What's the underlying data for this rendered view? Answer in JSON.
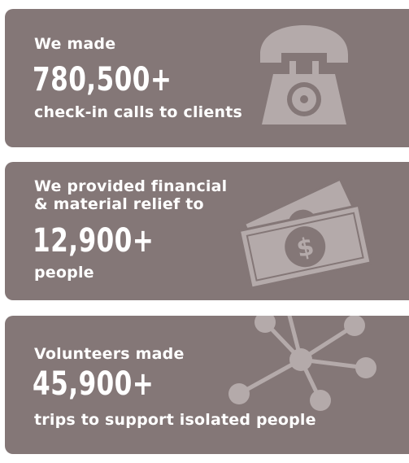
{
  "stats": [
    {
      "lead": "We made",
      "number": "780,500+",
      "tail": "check-in calls to clients",
      "icon": "phone-icon"
    },
    {
      "lead": "We provided financial & material relief to",
      "number": "12,900+",
      "tail": "people",
      "icon": "money-icon"
    },
    {
      "lead": "Volunteers made",
      "number": "45,900+",
      "tail": "trips to support isolated people",
      "icon": "network-icon"
    }
  ],
  "colors": {
    "card": "#847777",
    "icon": "#b4aaaa",
    "text": "#ffffff"
  }
}
